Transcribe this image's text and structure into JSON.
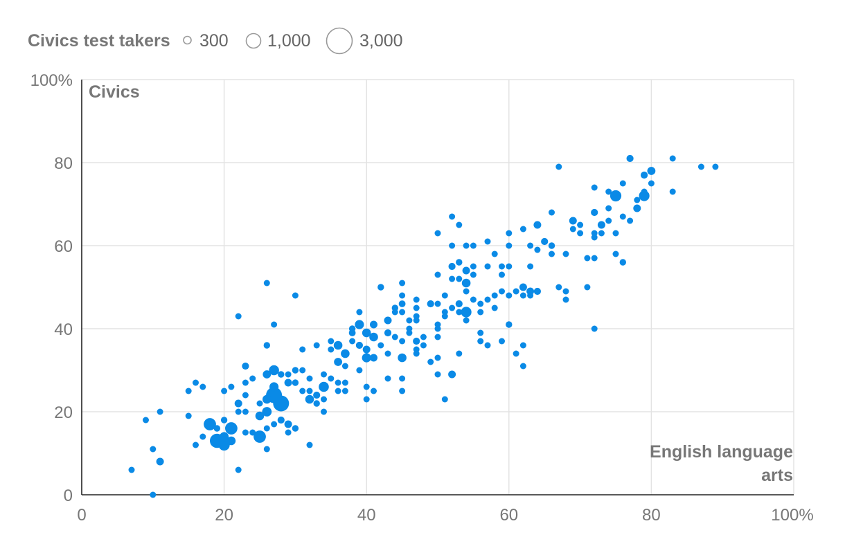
{
  "chart_data": {
    "type": "scatter",
    "legend": {
      "title": "Civics test takers",
      "entries": [
        {
          "label": "300",
          "size": 300
        },
        {
          "label": "1,000",
          "size": 1000
        },
        {
          "label": "3,000",
          "size": 3000
        }
      ],
      "placement": "top-left"
    },
    "xlabel_lines": [
      "English language",
      "arts"
    ],
    "ylabel": "Civics",
    "xlim": [
      0,
      100
    ],
    "ylim": [
      0,
      100
    ],
    "x_ticks": [
      "0",
      "20",
      "40",
      "60",
      "80",
      "100%"
    ],
    "y_ticks": [
      "0",
      "20",
      "40",
      "60",
      "80",
      "100%"
    ],
    "grid": true,
    "point_color": "#0A8AE6",
    "points": [
      [
        7,
        6,
        250
      ],
      [
        10,
        0,
        250
      ],
      [
        10,
        11,
        250
      ],
      [
        11,
        8,
        700
      ],
      [
        11,
        20,
        350
      ],
      [
        9,
        18,
        350
      ],
      [
        15,
        19,
        400
      ],
      [
        15,
        25,
        350
      ],
      [
        16,
        27,
        350
      ],
      [
        17,
        26,
        350
      ],
      [
        16,
        12,
        350
      ],
      [
        17,
        14,
        400
      ],
      [
        18,
        17,
        1800
      ],
      [
        19,
        13,
        2400
      ],
      [
        19,
        16,
        500
      ],
      [
        20,
        12,
        1500
      ],
      [
        20,
        14,
        1000
      ],
      [
        20,
        18,
        500
      ],
      [
        20,
        25,
        300
      ],
      [
        21,
        13,
        900
      ],
      [
        21,
        16,
        1800
      ],
      [
        21,
        26,
        350
      ],
      [
        22,
        22,
        700
      ],
      [
        22,
        20,
        300
      ],
      [
        22,
        43,
        300
      ],
      [
        22,
        6,
        350
      ],
      [
        23,
        31,
        600
      ],
      [
        23,
        27,
        350
      ],
      [
        23,
        24,
        400
      ],
      [
        23,
        20,
        400
      ],
      [
        23,
        15,
        400
      ],
      [
        24,
        15,
        450
      ],
      [
        24,
        28,
        300
      ],
      [
        25,
        14,
        1800
      ],
      [
        25,
        22,
        450
      ],
      [
        25,
        19,
        900
      ],
      [
        26,
        29,
        800
      ],
      [
        26,
        36,
        500
      ],
      [
        26,
        51,
        450
      ],
      [
        26,
        11,
        300
      ],
      [
        26,
        16,
        300
      ],
      [
        26,
        20,
        1100
      ],
      [
        26,
        23,
        900
      ],
      [
        27,
        30,
        1200
      ],
      [
        27,
        26,
        1000
      ],
      [
        27,
        41,
        300
      ],
      [
        27,
        17,
        450
      ],
      [
        27,
        24,
        3000
      ],
      [
        28,
        22,
        3000
      ],
      [
        28,
        18,
        600
      ],
      [
        28,
        29,
        500
      ],
      [
        29,
        27,
        700
      ],
      [
        29,
        17,
        700
      ],
      [
        29,
        15,
        300
      ],
      [
        29,
        29,
        300
      ],
      [
        30,
        30,
        500
      ],
      [
        30,
        27,
        500
      ],
      [
        30,
        16,
        500
      ],
      [
        30,
        48,
        450
      ],
      [
        31,
        25,
        450
      ],
      [
        31,
        30,
        450
      ],
      [
        31,
        35,
        450
      ],
      [
        32,
        28,
        350
      ],
      [
        32,
        12,
        250
      ],
      [
        32,
        25,
        350
      ],
      [
        32,
        23,
        900
      ],
      [
        33,
        24,
        600
      ],
      [
        33,
        22,
        500
      ],
      [
        33,
        36,
        350
      ],
      [
        34,
        26,
        1200
      ],
      [
        34,
        29,
        350
      ],
      [
        34,
        23,
        350
      ],
      [
        34,
        20,
        350
      ],
      [
        35,
        37,
        450
      ],
      [
        35,
        28,
        450
      ],
      [
        35,
        35,
        350
      ],
      [
        36,
        32,
        800
      ],
      [
        36,
        27,
        300
      ],
      [
        36,
        25,
        350
      ],
      [
        36,
        36,
        900
      ],
      [
        37,
        34,
        900
      ],
      [
        37,
        31,
        450
      ],
      [
        37,
        27,
        350
      ],
      [
        37,
        25,
        350
      ],
      [
        38,
        37,
        450
      ],
      [
        38,
        39,
        550
      ],
      [
        38,
        40,
        500
      ],
      [
        39,
        41,
        1000
      ],
      [
        39,
        44,
        450
      ],
      [
        39,
        36,
        600
      ],
      [
        39,
        30,
        350
      ],
      [
        40,
        39,
        900
      ],
      [
        40,
        33,
        1000
      ],
      [
        40,
        35,
        700
      ],
      [
        40,
        23,
        450
      ],
      [
        40,
        26,
        450
      ],
      [
        41,
        41,
        700
      ],
      [
        41,
        38,
        900
      ],
      [
        41,
        33,
        700
      ],
      [
        41,
        25,
        350
      ],
      [
        42,
        50,
        500
      ],
      [
        42,
        36,
        450
      ],
      [
        43,
        42,
        700
      ],
      [
        43,
        39,
        600
      ],
      [
        43,
        28,
        450
      ],
      [
        43,
        34,
        450
      ],
      [
        44,
        45,
        500
      ],
      [
        44,
        44,
        450
      ],
      [
        44,
        38,
        450
      ],
      [
        45,
        51,
        450
      ],
      [
        45,
        46,
        550
      ],
      [
        45,
        48,
        450
      ],
      [
        45,
        44,
        450
      ],
      [
        45,
        37,
        350
      ],
      [
        45,
        33,
        900
      ],
      [
        45,
        28,
        350
      ],
      [
        45,
        25,
        300
      ],
      [
        46,
        42,
        300
      ],
      [
        46,
        40,
        300
      ],
      [
        46,
        39,
        300
      ],
      [
        47,
        47,
        300
      ],
      [
        47,
        45,
        450
      ],
      [
        47,
        43,
        450
      ],
      [
        47,
        42,
        450
      ],
      [
        47,
        37,
        600
      ],
      [
        47,
        35,
        350
      ],
      [
        47,
        34,
        300
      ],
      [
        48,
        38,
        300
      ],
      [
        48,
        36,
        450
      ],
      [
        49,
        46,
        600
      ],
      [
        49,
        32,
        300
      ],
      [
        50,
        63,
        300
      ],
      [
        50,
        53,
        450
      ],
      [
        50,
        46,
        450
      ],
      [
        50,
        41,
        300
      ],
      [
        50,
        40,
        300
      ],
      [
        50,
        38,
        350
      ],
      [
        50,
        33,
        300
      ],
      [
        50,
        29,
        300
      ],
      [
        51,
        48,
        350
      ],
      [
        51,
        44,
        450
      ],
      [
        51,
        43,
        350
      ],
      [
        51,
        23,
        350
      ],
      [
        52,
        67,
        250
      ],
      [
        52,
        60,
        450
      ],
      [
        52,
        55,
        600
      ],
      [
        52,
        52,
        450
      ],
      [
        52,
        45,
        450
      ],
      [
        52,
        29,
        700
      ],
      [
        53,
        65,
        250
      ],
      [
        53,
        56,
        500
      ],
      [
        53,
        52,
        450
      ],
      [
        53,
        46,
        600
      ],
      [
        53,
        44,
        450
      ],
      [
        53,
        34,
        350
      ],
      [
        54,
        60,
        350
      ],
      [
        54,
        54,
        700
      ],
      [
        54,
        51,
        900
      ],
      [
        54,
        49,
        350
      ],
      [
        54,
        44,
        1300
      ],
      [
        54,
        42,
        350
      ],
      [
        55,
        60,
        450
      ],
      [
        55,
        55,
        450
      ],
      [
        55,
        53,
        450
      ],
      [
        55,
        47,
        450
      ],
      [
        56,
        46,
        450
      ],
      [
        56,
        44,
        450
      ],
      [
        56,
        39,
        450
      ],
      [
        56,
        37,
        350
      ],
      [
        57,
        61,
        300
      ],
      [
        57,
        55,
        300
      ],
      [
        57,
        47,
        350
      ],
      [
        57,
        36,
        350
      ],
      [
        58,
        58,
        350
      ],
      [
        58,
        48,
        350
      ],
      [
        58,
        45,
        450
      ],
      [
        59,
        55,
        450
      ],
      [
        59,
        53,
        300
      ],
      [
        59,
        49,
        350
      ],
      [
        59,
        37,
        300
      ],
      [
        60,
        63,
        350
      ],
      [
        60,
        60,
        300
      ],
      [
        60,
        55,
        450
      ],
      [
        60,
        48,
        450
      ],
      [
        60,
        41,
        500
      ],
      [
        61,
        34,
        350
      ],
      [
        61,
        49,
        450
      ],
      [
        62,
        64,
        250
      ],
      [
        62,
        50,
        700
      ],
      [
        62,
        48,
        450
      ],
      [
        62,
        36,
        300
      ],
      [
        62,
        31,
        300
      ],
      [
        63,
        60,
        350
      ],
      [
        63,
        55,
        450
      ],
      [
        63,
        49,
        700
      ],
      [
        63,
        48,
        450
      ],
      [
        64,
        65,
        700
      ],
      [
        64,
        59,
        450
      ],
      [
        64,
        49,
        600
      ],
      [
        65,
        61,
        600
      ],
      [
        66,
        68,
        450
      ],
      [
        66,
        60,
        500
      ],
      [
        66,
        58,
        450
      ],
      [
        67,
        79,
        450
      ],
      [
        67,
        50,
        250
      ],
      [
        68,
        58,
        450
      ],
      [
        68,
        49,
        300
      ],
      [
        68,
        47,
        450
      ],
      [
        69,
        66,
        700
      ],
      [
        69,
        64,
        350
      ],
      [
        70,
        65,
        450
      ],
      [
        70,
        63,
        300
      ],
      [
        71,
        57,
        450
      ],
      [
        71,
        50,
        300
      ],
      [
        72,
        74,
        350
      ],
      [
        72,
        68,
        600
      ],
      [
        72,
        63,
        450
      ],
      [
        72,
        62,
        450
      ],
      [
        72,
        57,
        350
      ],
      [
        72,
        40,
        250
      ],
      [
        73,
        65,
        700
      ],
      [
        73,
        63,
        450
      ],
      [
        74,
        73,
        450
      ],
      [
        74,
        69,
        450
      ],
      [
        74,
        66,
        450
      ],
      [
        75,
        72,
        1500
      ],
      [
        75,
        63,
        350
      ],
      [
        75,
        58,
        450
      ],
      [
        76,
        75,
        450
      ],
      [
        76,
        67,
        450
      ],
      [
        76,
        56,
        500
      ],
      [
        77,
        81,
        600
      ],
      [
        77,
        66,
        300
      ],
      [
        78,
        71,
        450
      ],
      [
        78,
        69,
        700
      ],
      [
        79,
        77,
        600
      ],
      [
        79,
        73,
        450
      ],
      [
        79,
        72,
        1300
      ],
      [
        80,
        78,
        800
      ],
      [
        80,
        75,
        450
      ],
      [
        83,
        81,
        450
      ],
      [
        83,
        73,
        450
      ],
      [
        87,
        79,
        250
      ],
      [
        89,
        79,
        250
      ]
    ]
  }
}
